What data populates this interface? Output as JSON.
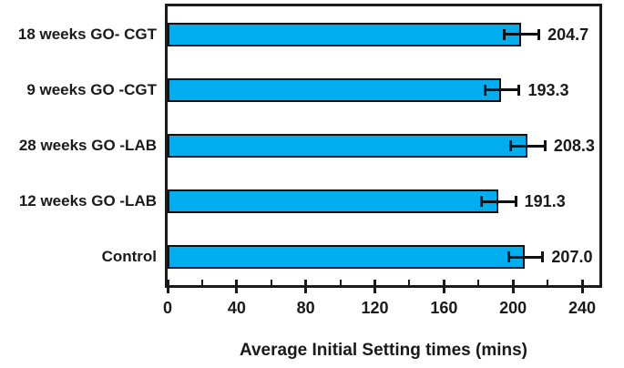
{
  "chart_data": {
    "type": "bar",
    "orientation": "horizontal",
    "title": "",
    "categories": [
      "18 weeks GO- CGT",
      "9 weeks GO -CGT",
      "28 weeks GO -LAB",
      "12 weeks GO -LAB",
      "Control"
    ],
    "values": [
      204.7,
      193.3,
      208.3,
      191.3,
      207.0
    ],
    "value_labels": [
      "204.7",
      "193.3",
      "208.3",
      "191.3",
      "207.0"
    ],
    "error_bar": 10,
    "xlabel": "Average Initial Setting times (mins)",
    "ylabel": "",
    "x_major_ticks": [
      0,
      40,
      80,
      120,
      160,
      200,
      240
    ],
    "x_major_tick_labels": [
      "0",
      "40",
      "80",
      "120",
      "160",
      "200",
      "240"
    ],
    "x_minor_ticks": [
      20,
      60,
      100,
      140,
      180,
      220
    ],
    "xlim": [
      0,
      250
    ],
    "grid": false,
    "legend_position": "none",
    "bar_color": "#00AEEF",
    "bar_border_color": "#111111",
    "axis_color": "#1a1a1a",
    "text_color": "#1a1a1a",
    "background_color": "#ffffff"
  }
}
